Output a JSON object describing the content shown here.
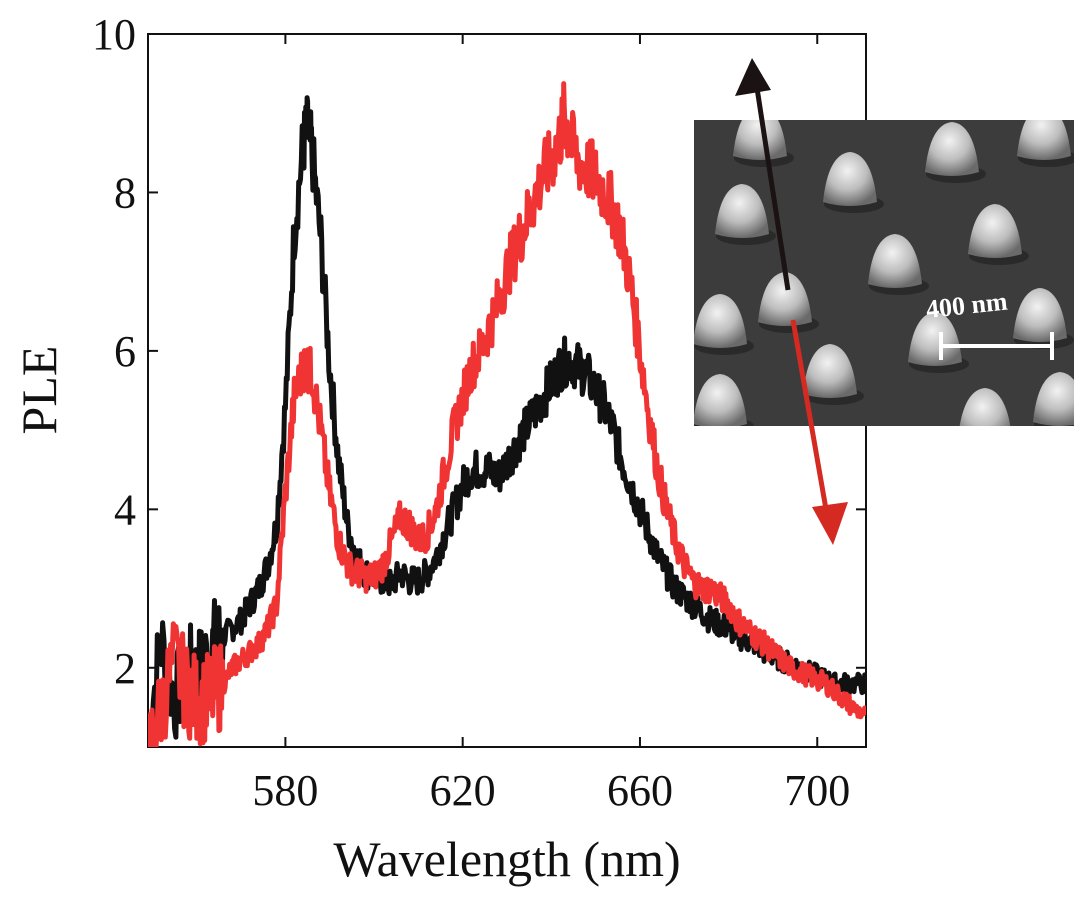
{
  "chart_data": {
    "type": "line",
    "title": "",
    "xlabel": "Wavelength (nm)",
    "ylabel": "PLE",
    "xlim": [
      549,
      711
    ],
    "ylim": [
      1,
      10
    ],
    "x_ticks": [
      580,
      620,
      660,
      700
    ],
    "y_ticks": [
      2,
      4,
      6,
      8,
      10
    ],
    "grid": false,
    "legend": "none",
    "series": [
      {
        "color": "#111111",
        "points": [
          [
            549,
            1.2
          ],
          [
            552,
            2.3
          ],
          [
            555,
            1.6
          ],
          [
            558,
            2.0
          ],
          [
            560,
            1.9
          ],
          [
            562,
            2.1
          ],
          [
            564,
            2.3
          ],
          [
            566,
            2.4
          ],
          [
            568,
            2.5
          ],
          [
            570,
            2.6
          ],
          [
            572,
            2.8
          ],
          [
            574,
            3.0
          ],
          [
            576,
            3.3
          ],
          [
            578,
            3.8
          ],
          [
            580,
            5.3
          ],
          [
            582,
            7.5
          ],
          [
            584,
            8.6
          ],
          [
            585,
            8.8
          ],
          [
            586,
            8.5
          ],
          [
            588,
            7.4
          ],
          [
            590,
            5.8
          ],
          [
            592,
            4.6
          ],
          [
            594,
            3.8
          ],
          [
            596,
            3.4
          ],
          [
            598,
            3.2
          ],
          [
            600,
            3.15
          ],
          [
            602,
            3.1
          ],
          [
            604,
            3.05
          ],
          [
            606,
            3.2
          ],
          [
            608,
            3.1
          ],
          [
            610,
            3.1
          ],
          [
            612,
            3.2
          ],
          [
            614,
            3.4
          ],
          [
            616,
            3.7
          ],
          [
            618,
            4.0
          ],
          [
            620,
            4.3
          ],
          [
            622,
            4.5
          ],
          [
            624,
            4.5
          ],
          [
            626,
            4.5
          ],
          [
            628,
            4.4
          ],
          [
            630,
            4.6
          ],
          [
            632,
            4.8
          ],
          [
            634,
            5.0
          ],
          [
            636,
            5.2
          ],
          [
            638,
            5.4
          ],
          [
            640,
            5.6
          ],
          [
            642,
            5.8
          ],
          [
            644,
            5.9
          ],
          [
            646,
            5.8
          ],
          [
            648,
            5.7
          ],
          [
            650,
            5.5
          ],
          [
            652,
            5.3
          ],
          [
            654,
            5.0
          ],
          [
            656,
            4.6
          ],
          [
            658,
            4.3
          ],
          [
            660,
            4.0
          ],
          [
            662,
            3.7
          ],
          [
            664,
            3.4
          ],
          [
            666,
            3.2
          ],
          [
            668,
            3.0
          ],
          [
            670,
            2.9
          ],
          [
            672,
            2.8
          ],
          [
            674,
            2.7
          ],
          [
            676,
            2.6
          ],
          [
            678,
            2.55
          ],
          [
            680,
            2.5
          ],
          [
            682,
            2.4
          ],
          [
            684,
            2.35
          ],
          [
            686,
            2.3
          ],
          [
            688,
            2.2
          ],
          [
            690,
            2.15
          ],
          [
            692,
            2.1
          ],
          [
            694,
            2.05
          ],
          [
            696,
            2.0
          ],
          [
            698,
            1.95
          ],
          [
            700,
            1.9
          ],
          [
            702,
            1.85
          ],
          [
            704,
            1.8
          ],
          [
            706,
            1.8
          ],
          [
            708,
            1.8
          ],
          [
            711,
            1.8
          ]
        ]
      },
      {
        "color": "#f03434",
        "points": [
          [
            549,
            1.0
          ],
          [
            552,
            1.5
          ],
          [
            555,
            2.1
          ],
          [
            558,
            1.7
          ],
          [
            560,
            1.6
          ],
          [
            562,
            1.6
          ],
          [
            564,
            1.7
          ],
          [
            566,
            1.8
          ],
          [
            568,
            2.0
          ],
          [
            570,
            2.1
          ],
          [
            572,
            2.2
          ],
          [
            574,
            2.3
          ],
          [
            576,
            2.5
          ],
          [
            578,
            2.8
          ],
          [
            580,
            4.2
          ],
          [
            582,
            5.4
          ],
          [
            584,
            5.8
          ],
          [
            585,
            5.8
          ],
          [
            586,
            5.7
          ],
          [
            588,
            5.0
          ],
          [
            590,
            4.2
          ],
          [
            592,
            3.6
          ],
          [
            594,
            3.3
          ],
          [
            596,
            3.2
          ],
          [
            598,
            3.15
          ],
          [
            600,
            3.15
          ],
          [
            602,
            3.3
          ],
          [
            604,
            3.6
          ],
          [
            606,
            3.9
          ],
          [
            608,
            3.8
          ],
          [
            610,
            3.6
          ],
          [
            612,
            3.7
          ],
          [
            614,
            4.0
          ],
          [
            616,
            4.5
          ],
          [
            618,
            5.0
          ],
          [
            620,
            5.4
          ],
          [
            622,
            5.8
          ],
          [
            624,
            6.0
          ],
          [
            626,
            6.3
          ],
          [
            628,
            6.6
          ],
          [
            630,
            7.0
          ],
          [
            632,
            7.3
          ],
          [
            634,
            7.6
          ],
          [
            636,
            7.9
          ],
          [
            638,
            8.2
          ],
          [
            640,
            8.4
          ],
          [
            642,
            8.7
          ],
          [
            643,
            9.0
          ],
          [
            644,
            8.7
          ],
          [
            646,
            8.4
          ],
          [
            648,
            8.3
          ],
          [
            650,
            8.2
          ],
          [
            652,
            8.0
          ],
          [
            654,
            7.8
          ],
          [
            656,
            7.4
          ],
          [
            658,
            6.8
          ],
          [
            660,
            6.0
          ],
          [
            662,
            5.2
          ],
          [
            664,
            4.5
          ],
          [
            666,
            4.0
          ],
          [
            668,
            3.6
          ],
          [
            670,
            3.3
          ],
          [
            672,
            3.1
          ],
          [
            674,
            3.0
          ],
          [
            676,
            3.0
          ],
          [
            678,
            2.9
          ],
          [
            680,
            2.8
          ],
          [
            682,
            2.6
          ],
          [
            684,
            2.5
          ],
          [
            686,
            2.4
          ],
          [
            688,
            2.3
          ],
          [
            690,
            2.2
          ],
          [
            692,
            2.1
          ],
          [
            694,
            2.0
          ],
          [
            696,
            1.95
          ],
          [
            698,
            1.9
          ],
          [
            700,
            1.85
          ],
          [
            702,
            1.8
          ],
          [
            704,
            1.7
          ],
          [
            706,
            1.6
          ],
          [
            708,
            1.5
          ],
          [
            711,
            1.4
          ]
        ]
      }
    ],
    "inset": {
      "scale_bar_label": "400 nm"
    }
  },
  "colors": {
    "series_black": "#111111",
    "series_red": "#f03434",
    "arrow_dark": "#1b1313",
    "arrow_red": "#d42a22",
    "sem_background": "#3c3c3c"
  }
}
